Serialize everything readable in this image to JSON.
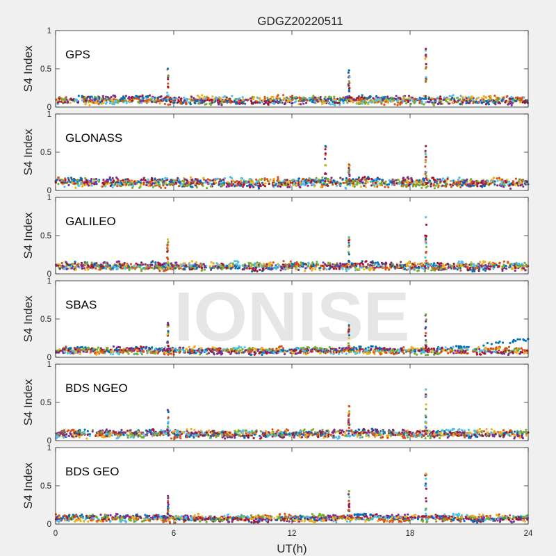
{
  "title": "GDGZ20220511",
  "watermark": "IONISE",
  "xlabel": "UT(h)",
  "ylabel": "S4 Index",
  "xticks": [
    "0",
    "6",
    "12",
    "18",
    "24"
  ],
  "yticks": [
    "0",
    "0.5",
    "1"
  ],
  "colors": [
    "#0072BD",
    "#D95319",
    "#EDB120",
    "#7E2F8E",
    "#77AC30",
    "#4DBEEE",
    "#A2142F"
  ],
  "chart_data": {
    "type": "scatter",
    "xlim": [
      0,
      24
    ],
    "ylim": [
      0,
      1
    ],
    "grid": false,
    "panels": [
      {
        "name": "GPS",
        "baseline": 0.08,
        "noise": 0.03,
        "spikes": [
          {
            "x": 5.7,
            "max": 0.5
          },
          {
            "x": 14.9,
            "max": 0.48
          },
          {
            "x": 18.8,
            "max": 0.76
          }
        ]
      },
      {
        "name": "GLONASS",
        "baseline": 0.09,
        "noise": 0.04,
        "spikes": [
          {
            "x": 13.7,
            "max": 0.58
          },
          {
            "x": 14.9,
            "max": 0.34
          },
          {
            "x": 18.8,
            "max": 0.58
          }
        ]
      },
      {
        "name": "GALILEO",
        "baseline": 0.09,
        "noise": 0.03,
        "spikes": [
          {
            "x": 5.7,
            "max": 0.45
          },
          {
            "x": 14.9,
            "max": 0.48
          },
          {
            "x": 18.8,
            "max": 0.74
          }
        ]
      },
      {
        "name": "SBAS",
        "baseline": 0.08,
        "noise": 0.02,
        "spikes": [
          {
            "x": 5.7,
            "max": 0.45
          },
          {
            "x": 14.9,
            "max": 0.42
          },
          {
            "x": 18.8,
            "max": 0.56
          }
        ]
      },
      {
        "name": "BDS NGEO",
        "baseline": 0.08,
        "noise": 0.03,
        "spikes": [
          {
            "x": 5.7,
            "max": 0.4
          },
          {
            "x": 14.9,
            "max": 0.45
          },
          {
            "x": 18.8,
            "max": 0.67
          }
        ]
      },
      {
        "name": "BDS GEO",
        "baseline": 0.07,
        "noise": 0.02,
        "spikes": [
          {
            "x": 5.7,
            "max": 0.37
          },
          {
            "x": 14.9,
            "max": 0.43
          },
          {
            "x": 18.8,
            "max": 0.66
          }
        ]
      }
    ]
  }
}
